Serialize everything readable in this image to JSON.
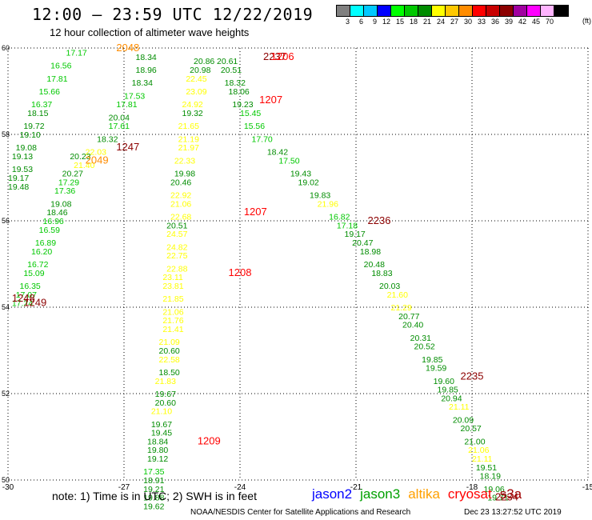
{
  "title": "12:00 – 23:59 UTC 12/22/2019",
  "subtitle": "12 hour collection of altimeter wave heights",
  "legend": {
    "unit": "(ft)",
    "bins": [
      {
        "label": "3",
        "color": "#808080"
      },
      {
        "label": "6",
        "color": "#00ffff"
      },
      {
        "label": "9",
        "color": "#00c8ff"
      },
      {
        "label": "12",
        "color": "#0000ff"
      },
      {
        "label": "15",
        "color": "#00ff00"
      },
      {
        "label": "18",
        "color": "#00c800"
      },
      {
        "label": "21",
        "color": "#008c00"
      },
      {
        "label": "24",
        "color": "#ffff00"
      },
      {
        "label": "27",
        "color": "#ffc800"
      },
      {
        "label": "30",
        "color": "#ff8c00"
      },
      {
        "label": "33",
        "color": "#ff0000"
      },
      {
        "label": "36",
        "color": "#c80000"
      },
      {
        "label": "39",
        "color": "#8c0000"
      },
      {
        "label": "42",
        "color": "#a000a0"
      },
      {
        "label": "45",
        "color": "#ff00ff"
      },
      {
        "label": "70",
        "color": "#ffb4ff"
      },
      {
        "label": "",
        "color": "#000000"
      }
    ]
  },
  "note": "note: 1) Time is in UTC; 2) SWH is in feet",
  "missions": [
    {
      "name": "jason2",
      "color": "#0000ff"
    },
    {
      "name": "jason3",
      "color": "#00a000"
    },
    {
      "name": "altika",
      "color": "#ffa000"
    },
    {
      "name": "cryosat",
      "color": "#ff0000"
    },
    {
      "name": "s3a",
      "color": "#a00000"
    }
  ],
  "credit": "NOAA/NESDIS Center for Satellite Applications and Research",
  "timestamp": "Dec 23 13:27:52 UTC 2019",
  "chart_data": {
    "type": "scatter",
    "xlim": [
      -30,
      -15
    ],
    "ylim": [
      50,
      60
    ],
    "xticks": [
      "-30",
      "-27",
      "-24",
      "-21",
      "-18",
      "-15"
    ],
    "yticks": [
      "50",
      "52",
      "54",
      "56",
      "58",
      "60"
    ],
    "grid": true,
    "points": [
      {
        "x": -28.5,
        "y": 59.9,
        "v": "17.17",
        "c": "#00c800"
      },
      {
        "x": -26.7,
        "y": 59.8,
        "v": "18.34",
        "c": "#008c00"
      },
      {
        "x": -28.9,
        "y": 59.6,
        "v": "16.56",
        "c": "#00c800"
      },
      {
        "x": -26.7,
        "y": 59.5,
        "v": "18.96",
        "c": "#008c00"
      },
      {
        "x": -29.0,
        "y": 59.3,
        "v": "17.81",
        "c": "#00c800"
      },
      {
        "x": -26.8,
        "y": 59.2,
        "v": "18.34",
        "c": "#008c00"
      },
      {
        "x": -29.2,
        "y": 59.0,
        "v": "15.66",
        "c": "#00c800"
      },
      {
        "x": -27.0,
        "y": 58.9,
        "v": "17.53",
        "c": "#00c800"
      },
      {
        "x": -29.4,
        "y": 58.7,
        "v": "16.37",
        "c": "#00c800"
      },
      {
        "x": -27.2,
        "y": 58.7,
        "v": "17.81",
        "c": "#00c800"
      },
      {
        "x": -29.5,
        "y": 58.5,
        "v": "18.15",
        "c": "#008c00"
      },
      {
        "x": -27.4,
        "y": 58.4,
        "v": "20.04",
        "c": "#008c00"
      },
      {
        "x": -29.6,
        "y": 58.2,
        "v": "19.72",
        "c": "#008c00"
      },
      {
        "x": -27.4,
        "y": 58.2,
        "v": "17.61",
        "c": "#00c800"
      },
      {
        "x": -29.7,
        "y": 58.0,
        "v": "19.10",
        "c": "#008c00"
      },
      {
        "x": -27.7,
        "y": 57.9,
        "v": "18.32",
        "c": "#008c00"
      },
      {
        "x": -29.8,
        "y": 57.7,
        "v": "19.08",
        "c": "#008c00"
      },
      {
        "x": -28.0,
        "y": 57.6,
        "v": "22.03",
        "c": "#ffff00"
      },
      {
        "x": -28.4,
        "y": 57.5,
        "v": "20.23",
        "c": "#008c00"
      },
      {
        "x": -29.9,
        "y": 57.5,
        "v": "19.13",
        "c": "#008c00"
      },
      {
        "x": -28.3,
        "y": 57.3,
        "v": "21.40",
        "c": "#ffff00"
      },
      {
        "x": -29.9,
        "y": 57.2,
        "v": "19.53",
        "c": "#008c00"
      },
      {
        "x": -28.6,
        "y": 57.1,
        "v": "20.27",
        "c": "#008c00"
      },
      {
        "x": -30.0,
        "y": 57.0,
        "v": "19.17",
        "c": "#008c00"
      },
      {
        "x": -28.7,
        "y": 56.9,
        "v": "17.29",
        "c": "#00c800"
      },
      {
        "x": -30.0,
        "y": 56.8,
        "v": "19.48",
        "c": "#008c00"
      },
      {
        "x": -28.8,
        "y": 56.7,
        "v": "17.36",
        "c": "#00c800"
      },
      {
        "x": -28.9,
        "y": 56.4,
        "v": "19.08",
        "c": "#008c00"
      },
      {
        "x": -29.0,
        "y": 56.2,
        "v": "18.46",
        "c": "#008c00"
      },
      {
        "x": -29.1,
        "y": 56.0,
        "v": "16.96",
        "c": "#00c800"
      },
      {
        "x": -29.2,
        "y": 55.8,
        "v": "16.59",
        "c": "#00c800"
      },
      {
        "x": -29.3,
        "y": 55.5,
        "v": "16.89",
        "c": "#00c800"
      },
      {
        "x": -29.4,
        "y": 55.3,
        "v": "16.20",
        "c": "#00c800"
      },
      {
        "x": -29.5,
        "y": 55.0,
        "v": "16.72",
        "c": "#00c800"
      },
      {
        "x": -29.6,
        "y": 54.8,
        "v": "15.09",
        "c": "#00c800"
      },
      {
        "x": -29.7,
        "y": 54.5,
        "v": "16.35",
        "c": "#00c800"
      },
      {
        "x": -29.8,
        "y": 54.3,
        "v": "17.07",
        "c": "#00c800"
      },
      {
        "x": -29.9,
        "y": 54.1,
        "v": "17.24",
        "c": "#00c800"
      },
      {
        "x": -25.2,
        "y": 59.7,
        "v": "20.86",
        "c": "#008c00"
      },
      {
        "x": -24.6,
        "y": 59.7,
        "v": "20.61",
        "c": "#008c00"
      },
      {
        "x": -25.3,
        "y": 59.5,
        "v": "20.98",
        "c": "#008c00"
      },
      {
        "x": -24.5,
        "y": 59.5,
        "v": "20.51",
        "c": "#008c00"
      },
      {
        "x": -25.4,
        "y": 59.3,
        "v": "22.45",
        "c": "#ffff00"
      },
      {
        "x": -24.4,
        "y": 59.2,
        "v": "18.32",
        "c": "#008c00"
      },
      {
        "x": -25.4,
        "y": 59.0,
        "v": "23.09",
        "c": "#ffff00"
      },
      {
        "x": -24.3,
        "y": 59.0,
        "v": "18.06",
        "c": "#008c00"
      },
      {
        "x": -25.5,
        "y": 58.7,
        "v": "24.92",
        "c": "#ffff00"
      },
      {
        "x": -24.2,
        "y": 58.7,
        "v": "19.23",
        "c": "#008c00"
      },
      {
        "x": -25.5,
        "y": 58.5,
        "v": "19.32",
        "c": "#008c00"
      },
      {
        "x": -24.0,
        "y": 58.5,
        "v": "15.45",
        "c": "#00c800"
      },
      {
        "x": -25.6,
        "y": 58.2,
        "v": "21.65",
        "c": "#ffff00"
      },
      {
        "x": -23.9,
        "y": 58.2,
        "v": "15.56",
        "c": "#00c800"
      },
      {
        "x": -25.6,
        "y": 57.9,
        "v": "21.19",
        "c": "#ffff00"
      },
      {
        "x": -23.7,
        "y": 57.9,
        "v": "17.70",
        "c": "#00c800"
      },
      {
        "x": -25.6,
        "y": 57.7,
        "v": "21.97",
        "c": "#ffff00"
      },
      {
        "x": -23.3,
        "y": 57.6,
        "v": "18.42",
        "c": "#008c00"
      },
      {
        "x": -25.7,
        "y": 57.4,
        "v": "22.33",
        "c": "#ffff00"
      },
      {
        "x": -23.0,
        "y": 57.4,
        "v": "17.50",
        "c": "#00c800"
      },
      {
        "x": -25.7,
        "y": 57.1,
        "v": "19.98",
        "c": "#008c00"
      },
      {
        "x": -22.7,
        "y": 57.1,
        "v": "19.43",
        "c": "#008c00"
      },
      {
        "x": -25.8,
        "y": 56.9,
        "v": "20.46",
        "c": "#008c00"
      },
      {
        "x": -22.5,
        "y": 56.9,
        "v": "19.02",
        "c": "#008c00"
      },
      {
        "x": -25.8,
        "y": 56.6,
        "v": "22.92",
        "c": "#ffff00"
      },
      {
        "x": -22.2,
        "y": 56.6,
        "v": "19.83",
        "c": "#008c00"
      },
      {
        "x": -25.8,
        "y": 56.4,
        "v": "21.06",
        "c": "#ffff00"
      },
      {
        "x": -22.0,
        "y": 56.4,
        "v": "21.96",
        "c": "#ffff00"
      },
      {
        "x": -25.8,
        "y": 56.1,
        "v": "22.68",
        "c": "#ffff00"
      },
      {
        "x": -21.7,
        "y": 56.1,
        "v": "16.82",
        "c": "#00c800"
      },
      {
        "x": -25.9,
        "y": 55.9,
        "v": "20.51",
        "c": "#008c00"
      },
      {
        "x": -21.5,
        "y": 55.9,
        "v": "17.18",
        "c": "#00c800"
      },
      {
        "x": -25.9,
        "y": 55.7,
        "v": "24.57",
        "c": "#ffff00"
      },
      {
        "x": -21.3,
        "y": 55.7,
        "v": "19.17",
        "c": "#008c00"
      },
      {
        "x": -25.9,
        "y": 55.4,
        "v": "24.82",
        "c": "#ffff00"
      },
      {
        "x": -21.1,
        "y": 55.5,
        "v": "20.47",
        "c": "#008c00"
      },
      {
        "x": -25.9,
        "y": 55.2,
        "v": "22.75",
        "c": "#ffff00"
      },
      {
        "x": -20.9,
        "y": 55.3,
        "v": "18.98",
        "c": "#008c00"
      },
      {
        "x": -25.9,
        "y": 54.9,
        "v": "22.88",
        "c": "#ffff00"
      },
      {
        "x": -20.8,
        "y": 55.0,
        "v": "20.48",
        "c": "#008c00"
      },
      {
        "x": -26.0,
        "y": 54.7,
        "v": "23.11",
        "c": "#ffff00"
      },
      {
        "x": -20.6,
        "y": 54.8,
        "v": "18.83",
        "c": "#008c00"
      },
      {
        "x": -26.0,
        "y": 54.5,
        "v": "23.81",
        "c": "#ffff00"
      },
      {
        "x": -20.4,
        "y": 54.5,
        "v": "20.03",
        "c": "#008c00"
      },
      {
        "x": -26.0,
        "y": 54.2,
        "v": "21.85",
        "c": "#ffff00"
      },
      {
        "x": -20.2,
        "y": 54.3,
        "v": "21.60",
        "c": "#ffff00"
      },
      {
        "x": -26.0,
        "y": 53.9,
        "v": "21.06",
        "c": "#ffff00"
      },
      {
        "x": -20.1,
        "y": 54.0,
        "v": "21.29",
        "c": "#ffff00"
      },
      {
        "x": -26.0,
        "y": 53.7,
        "v": "21.76",
        "c": "#ffff00"
      },
      {
        "x": -19.9,
        "y": 53.8,
        "v": "20.77",
        "c": "#008c00"
      },
      {
        "x": -26.0,
        "y": 53.5,
        "v": "21.41",
        "c": "#ffff00"
      },
      {
        "x": -19.8,
        "y": 53.6,
        "v": "20.40",
        "c": "#008c00"
      },
      {
        "x": -26.1,
        "y": 53.2,
        "v": "21.09",
        "c": "#ffff00"
      },
      {
        "x": -19.6,
        "y": 53.3,
        "v": "20.31",
        "c": "#008c00"
      },
      {
        "x": -26.1,
        "y": 53.0,
        "v": "20.60",
        "c": "#008c00"
      },
      {
        "x": -19.5,
        "y": 53.1,
        "v": "20.52",
        "c": "#008c00"
      },
      {
        "x": -26.1,
        "y": 52.8,
        "v": "22.58",
        "c": "#ffff00"
      },
      {
        "x": -19.3,
        "y": 52.8,
        "v": "19.85",
        "c": "#008c00"
      },
      {
        "x": -26.1,
        "y": 52.5,
        "v": "18.50",
        "c": "#008c00"
      },
      {
        "x": -19.2,
        "y": 52.6,
        "v": "19.59",
        "c": "#008c00"
      },
      {
        "x": -26.2,
        "y": 52.3,
        "v": "21.83",
        "c": "#ffff00"
      },
      {
        "x": -19.0,
        "y": 52.3,
        "v": "19.60",
        "c": "#008c00"
      },
      {
        "x": -26.2,
        "y": 52.0,
        "v": "19.67",
        "c": "#008c00"
      },
      {
        "x": -18.9,
        "y": 52.1,
        "v": "19.85",
        "c": "#008c00"
      },
      {
        "x": -26.2,
        "y": 51.8,
        "v": "20.60",
        "c": "#008c00"
      },
      {
        "x": -18.8,
        "y": 51.9,
        "v": "20.94",
        "c": "#008c00"
      },
      {
        "x": -26.3,
        "y": 51.6,
        "v": "21.10",
        "c": "#ffff00"
      },
      {
        "x": -18.6,
        "y": 51.7,
        "v": "21.11",
        "c": "#ffff00"
      },
      {
        "x": -26.3,
        "y": 51.3,
        "v": "19.67",
        "c": "#008c00"
      },
      {
        "x": -18.5,
        "y": 51.4,
        "v": "20.09",
        "c": "#008c00"
      },
      {
        "x": -26.3,
        "y": 51.1,
        "v": "19.45",
        "c": "#008c00"
      },
      {
        "x": -18.3,
        "y": 51.2,
        "v": "20.57",
        "c": "#008c00"
      },
      {
        "x": -26.4,
        "y": 50.9,
        "v": "18.84",
        "c": "#008c00"
      },
      {
        "x": -18.2,
        "y": 50.9,
        "v": "21.00",
        "c": "#008c00"
      },
      {
        "x": -26.4,
        "y": 50.7,
        "v": "19.80",
        "c": "#008c00"
      },
      {
        "x": -18.1,
        "y": 50.7,
        "v": "21.06",
        "c": "#ffff00"
      },
      {
        "x": -26.4,
        "y": 50.5,
        "v": "19.12",
        "c": "#008c00"
      },
      {
        "x": -18.0,
        "y": 50.5,
        "v": "21.11",
        "c": "#ffff00"
      },
      {
        "x": -26.5,
        "y": 50.2,
        "v": "17.35",
        "c": "#00c800"
      },
      {
        "x": -17.9,
        "y": 50.3,
        "v": "19.51",
        "c": "#008c00"
      },
      {
        "x": -26.5,
        "y": 50.0,
        "v": "18.91",
        "c": "#008c00"
      },
      {
        "x": -17.8,
        "y": 50.1,
        "v": "18.19",
        "c": "#008c00"
      },
      {
        "x": -26.5,
        "y": 49.8,
        "v": "19.21",
        "c": "#008c00"
      },
      {
        "x": -17.7,
        "y": 49.8,
        "v": "19.06",
        "c": "#008c00"
      },
      {
        "x": -26.5,
        "y": 49.6,
        "v": "19.88",
        "c": "#008c00"
      },
      {
        "x": -17.6,
        "y": 49.6,
        "v": "19.71",
        "c": "#008c00"
      },
      {
        "x": -26.5,
        "y": 49.4,
        "v": "19.62",
        "c": "#008c00"
      }
    ],
    "pass_labels": [
      {
        "x": -27.2,
        "y": 60.0,
        "t": "2048",
        "c": "#ff8c00"
      },
      {
        "x": -28.0,
        "y": 57.4,
        "t": "2049",
        "c": "#ff8c00"
      },
      {
        "x": -27.2,
        "y": 57.7,
        "t": "1247",
        "c": "#8c0000"
      },
      {
        "x": -29.9,
        "y": 54.2,
        "t": "1248",
        "c": "#8c0000"
      },
      {
        "x": -29.6,
        "y": 54.1,
        "t": "1249",
        "c": "#8c0000"
      },
      {
        "x": -23.4,
        "y": 59.8,
        "t": "2237",
        "c": "#8c0000"
      },
      {
        "x": -23.2,
        "y": 59.8,
        "t": "1206",
        "c": "#ff0000"
      },
      {
        "x": -23.5,
        "y": 58.8,
        "t": "1207",
        "c": "#ff0000"
      },
      {
        "x": -23.9,
        "y": 56.2,
        "t": "1207",
        "c": "#ff0000"
      },
      {
        "x": -20.7,
        "y": 56.0,
        "t": "2236",
        "c": "#8c0000"
      },
      {
        "x": -24.3,
        "y": 54.8,
        "t": "1208",
        "c": "#ff0000"
      },
      {
        "x": -18.3,
        "y": 52.4,
        "t": "2235",
        "c": "#8c0000"
      },
      {
        "x": -25.1,
        "y": 50.9,
        "t": "1209",
        "c": "#ff0000"
      },
      {
        "x": -17.4,
        "y": 49.6,
        "t": "2234",
        "c": "#8c0000"
      }
    ]
  }
}
